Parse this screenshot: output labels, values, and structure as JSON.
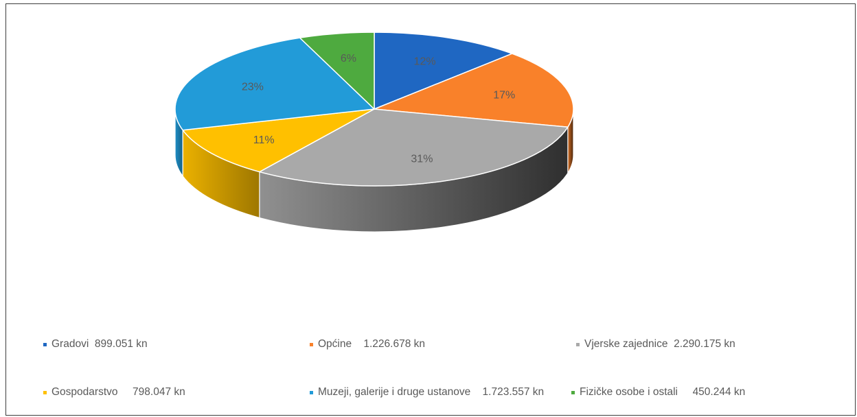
{
  "chart_data": {
    "type": "pie",
    "title": "",
    "slices": [
      {
        "label": "Gradovi",
        "amount": "899.051 kn",
        "value": 899051,
        "percent_label": "12%",
        "color": "#1f67c2"
      },
      {
        "label": "Općine",
        "amount": "1.226.678 kn",
        "value": 1226678,
        "percent_label": "17%",
        "color": "#f9812a"
      },
      {
        "label": "Vjerske zajednice",
        "amount": "2.290.175 kn",
        "value": 2290175,
        "percent_label": "31%",
        "color": "#a9a9a9"
      },
      {
        "label": "Gospodarstvo",
        "amount": "798.047 kn",
        "value": 798047,
        "percent_label": "11%",
        "color": "#ffc000"
      },
      {
        "label": "Muzeji, galerije i druge ustanove",
        "amount": "1.723.557 kn",
        "value": 1723557,
        "percent_label": "23%",
        "color": "#229bd8"
      },
      {
        "label": "Fizičke osobe i ostali",
        "amount": "450.244 kn",
        "value": 450244,
        "percent_label": "6%",
        "color": "#4eaa3f"
      }
    ],
    "legend_position": "bottom",
    "style": "3d-pie"
  }
}
